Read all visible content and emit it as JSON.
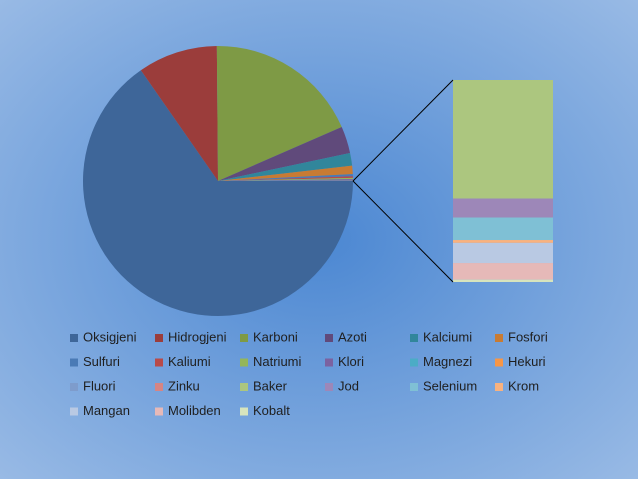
{
  "chart_data": {
    "type": "pie-of-bar",
    "categories": [
      "Oksigjeni",
      "Hidrogjeni",
      "Karboni",
      "Azoti",
      "Kalciumi",
      "Fosfori",
      "Sulfuri",
      "Kaliumi",
      "Natriumi",
      "Klori",
      "Magnezi",
      "Hekuri",
      "Fluori",
      "Zinku",
      "Baker",
      "Jod",
      "Selenium",
      "Krom",
      "Mangan",
      "Molibden",
      "Kobalt"
    ],
    "values": [
      65,
      9.5,
      18.5,
      3.2,
      1.5,
      1.0,
      0.25,
      0.2,
      0.15,
      0.15,
      0.05,
      0.006,
      0.0037,
      0.0032,
      0.0001,
      1.6e-05,
      1.9e-05,
      2.4e-06,
      1.7e-05,
      1.4e-05,
      2e-06
    ],
    "colors": [
      "#3e6699",
      "#9b3d3b",
      "#7e9a45",
      "#604a7b",
      "#31869b",
      "#c87b33",
      "#4a7ab5",
      "#b94a48",
      "#94b65a",
      "#7b62a0",
      "#4bacc6",
      "#f79646",
      "#7e9ccc",
      "#d68584",
      "#acc67f",
      "#9d87b8",
      "#7fc0d5",
      "#f9b27f",
      "#b9c9e3",
      "#e6b9b8",
      "#d7e4bd"
    ],
    "second_plot_count": 7
  }
}
